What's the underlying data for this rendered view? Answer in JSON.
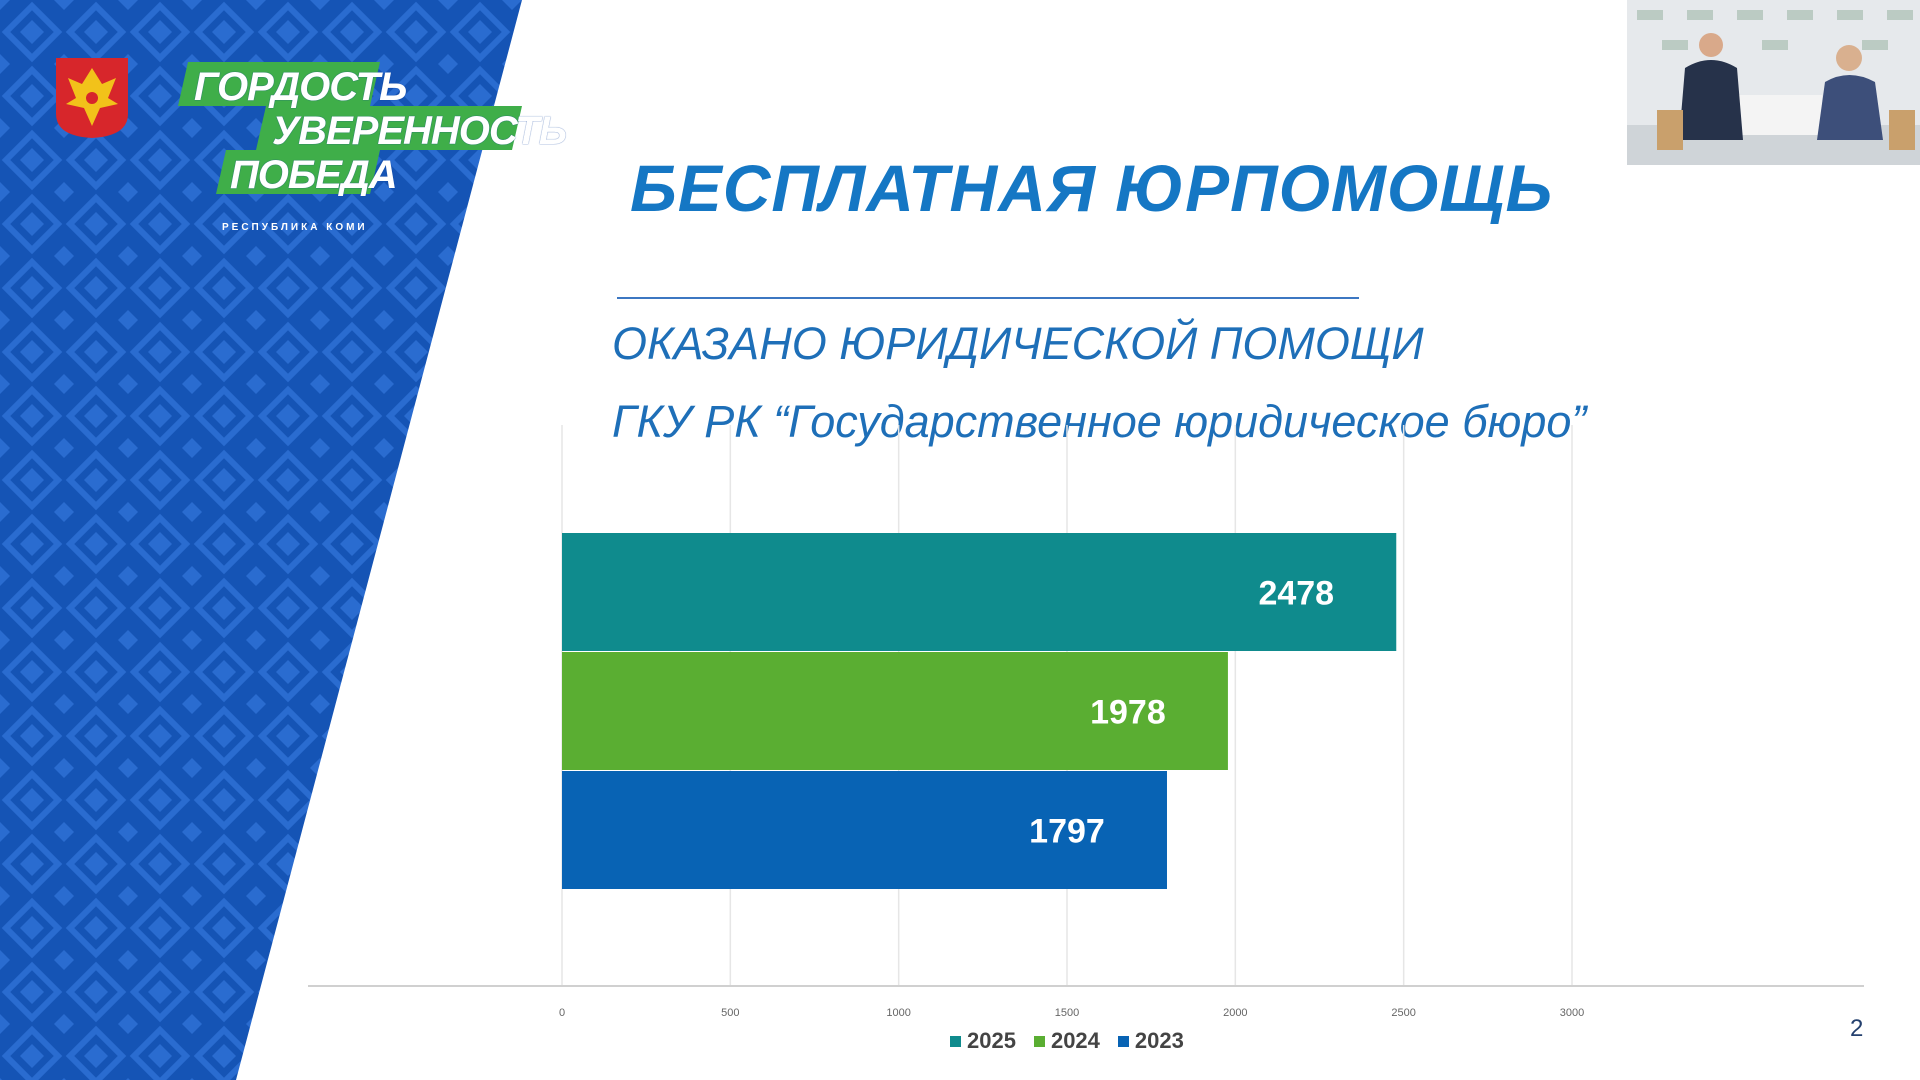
{
  "slide": {
    "title": "БЕСПЛАТНАЯ ЮРПОМОЩЬ",
    "subtitle_1": "ОКАЗАНО ЮРИДИЧЕСКОЙ ПОМОЩИ",
    "subtitle_2": "ГКУ РК “Государственное юридическое бюро”",
    "page_number": "2"
  },
  "branding": {
    "slogan_line_1": "ГОРДОСТЬ",
    "slogan_line_2": "УВЕРЕННОСТЬ",
    "slogan_line_3": "ПОБЕДА",
    "region": "РЕСПУБЛИКА КОМИ",
    "emblem_icon": "komi-coat-of-arms-icon",
    "blue": "#1554b5",
    "green": "#3fae49"
  },
  "video": {
    "icon": "webcam-video-feed-icon"
  },
  "chart_data": {
    "type": "bar",
    "orientation": "horizontal",
    "categories": [
      "2025",
      "2024",
      "2023"
    ],
    "values": [
      2478,
      1978,
      1797
    ],
    "colors": [
      "#0f8b8d",
      "#5aae32",
      "#0863b4"
    ],
    "data_labels": [
      "2478",
      "1978",
      "1797"
    ],
    "xlim": [
      0,
      3000
    ],
    "x_ticks": [
      0,
      500,
      1000,
      1500,
      2000,
      2500,
      3000
    ],
    "x_tick_labels": [
      "0",
      "500",
      "1000",
      "1500",
      "2000",
      "2500",
      "3000"
    ],
    "grid": true,
    "legend": {
      "position": "bottom",
      "entries": [
        "2025",
        "2024",
        "2023"
      ],
      "colors": [
        "#0f8b8d",
        "#5aae32",
        "#0863b4"
      ]
    }
  }
}
